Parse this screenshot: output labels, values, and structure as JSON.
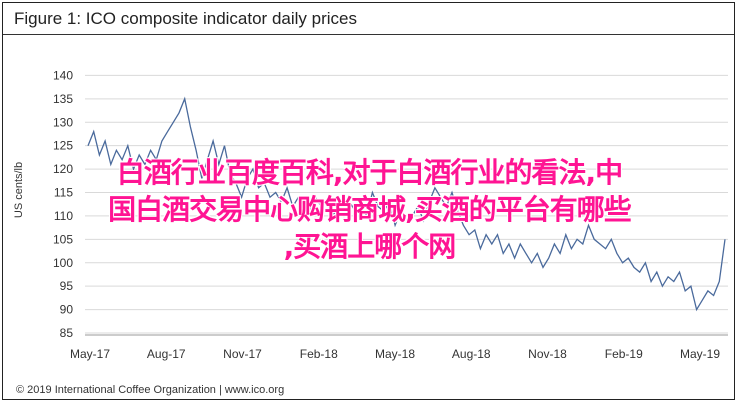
{
  "chart_data": {
    "type": "line",
    "title": "Figure 1: ICO composite indicator daily prices",
    "ylabel": "US cents/lb",
    "xlabel": "",
    "ylim": [
      85,
      145
    ],
    "yticks": [
      85,
      90,
      95,
      100,
      105,
      110,
      115,
      120,
      125,
      130,
      135,
      140
    ],
    "xticks": [
      "May-17",
      "Aug-17",
      "Nov-17",
      "Feb-18",
      "May-18",
      "Aug-18",
      "Nov-18",
      "Feb-19",
      "May-19"
    ],
    "grid": true,
    "line_color": "#4a6a9c",
    "series": [
      {
        "values": [
          125,
          128,
          123,
          126,
          121,
          124,
          122,
          125,
          120,
          123,
          121,
          124,
          122,
          126,
          128,
          130,
          132,
          135,
          129,
          124,
          118,
          122,
          126,
          121,
          125,
          119,
          117,
          114,
          118,
          120,
          116,
          117,
          114,
          115,
          113,
          116,
          112,
          114,
          113,
          111,
          114,
          112,
          113,
          110,
          112,
          110,
          113,
          111,
          112,
          110,
          115,
          112,
          111,
          113,
          108,
          111,
          109,
          110,
          112,
          109,
          113,
          116,
          114,
          112,
          115,
          111,
          108,
          106,
          107,
          103,
          106,
          104,
          106,
          102,
          104,
          101,
          104,
          102,
          100,
          102,
          99,
          101,
          104,
          102,
          106,
          103,
          105,
          104,
          108,
          105,
          104,
          103,
          105,
          102,
          100,
          101,
          99,
          98,
          100,
          96,
          98,
          95,
          97,
          96,
          98,
          94,
          95,
          90,
          92,
          94,
          93,
          96,
          105
        ]
      }
    ]
  },
  "overlay": {
    "lines": [
      "白酒行业百度百科,对于白酒行业的看法,中",
      "国白酒交易中心购销商城,买酒的平台有哪些",
      ",买酒上哪个网"
    ]
  },
  "footer": {
    "copyright": "© 2019 International Coffee Organization | www.ico.org"
  }
}
